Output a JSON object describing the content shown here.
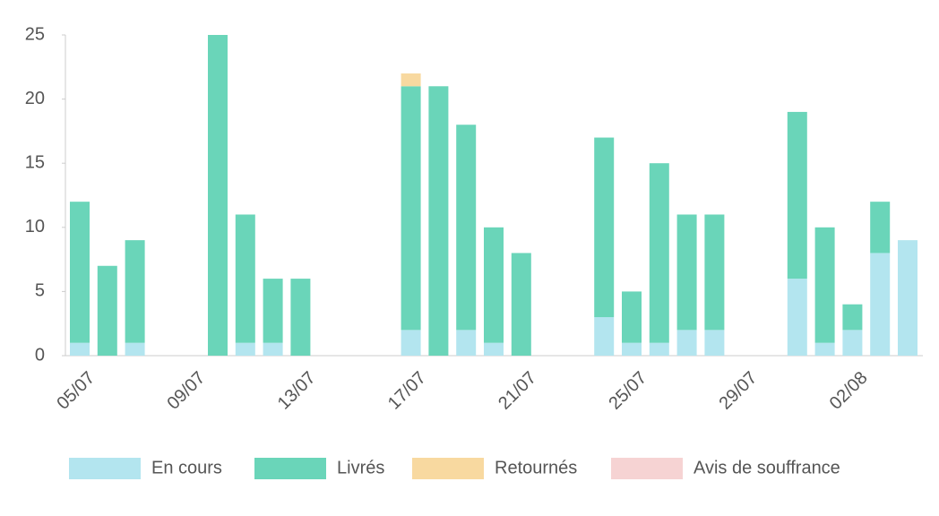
{
  "chart_data": {
    "type": "stacked_bar",
    "categories": [
      "05/07",
      null,
      null,
      null,
      "09/07",
      null,
      null,
      null,
      "13/07",
      null,
      null,
      null,
      "17/07",
      null,
      null,
      null,
      "21/07",
      null,
      null,
      null,
      "25/07",
      null,
      null,
      null,
      "29/07",
      null,
      null,
      null,
      "02/08",
      null,
      null
    ],
    "series": [
      {
        "name": "En cours",
        "color": "#b3e5ef",
        "values": [
          1,
          0,
          1,
          0,
          0,
          0,
          1,
          1,
          0,
          0,
          0,
          0,
          2,
          0,
          2,
          1,
          0,
          0,
          0,
          3,
          1,
          1,
          2,
          2,
          0,
          0,
          6,
          1,
          2,
          8,
          9
        ]
      },
      {
        "name": "Livrés",
        "color": "#6ad5b9",
        "values": [
          11,
          7,
          8,
          0,
          0,
          25,
          10,
          5,
          6,
          0,
          0,
          0,
          19,
          21,
          16,
          9,
          8,
          0,
          0,
          14,
          4,
          14,
          9,
          9,
          0,
          0,
          13,
          9,
          2,
          4,
          0
        ]
      },
      {
        "name": "Retournés",
        "color": "#f8d9a0",
        "values": [
          0,
          0,
          0,
          0,
          0,
          0,
          0,
          0,
          0,
          0,
          0,
          0,
          1,
          0,
          0,
          0,
          0,
          0,
          0,
          0,
          0,
          0,
          0,
          0,
          0,
          0,
          0,
          0,
          0,
          0,
          0
        ]
      },
      {
        "name": "Avis de souffrance",
        "color": "#f6d3d3",
        "values": [
          0,
          0,
          0,
          0,
          0,
          0,
          0,
          0,
          0,
          0,
          0,
          0,
          0,
          0,
          0,
          0,
          0,
          0,
          0,
          0,
          0,
          0,
          0,
          0,
          0,
          0,
          0,
          0,
          0,
          0,
          0
        ]
      }
    ],
    "ylim": [
      0,
      25
    ],
    "yticks": [
      0,
      5,
      10,
      15,
      20,
      25
    ],
    "legend": "bottom"
  }
}
